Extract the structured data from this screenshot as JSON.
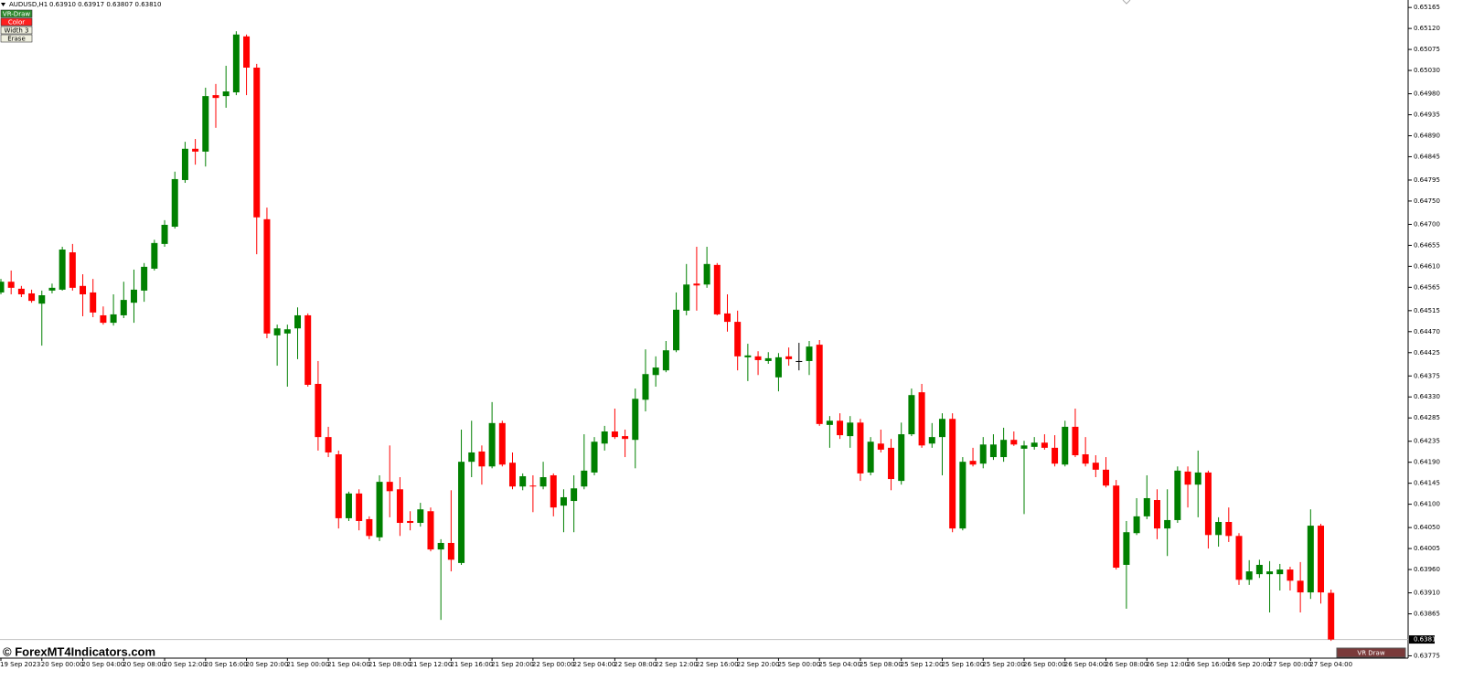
{
  "chart_data": {
    "type": "candlestick",
    "symbol": "AUDUSD,H1",
    "ohlc_text": "0.63910 0.63917 0.63807 0.63810",
    "categories": [
      "19 Sep 2023",
      null,
      null,
      null,
      "20 Sep 00:00",
      null,
      null,
      null,
      "20 Sep 04:00",
      null,
      null,
      null,
      "20 Sep 08:00",
      null,
      null,
      null,
      "20 Sep 12:00",
      null,
      null,
      null,
      "20 Sep 16:00",
      null,
      null,
      null,
      "20 Sep 20:00",
      null,
      null,
      null,
      "21 Sep 00:00",
      null,
      null,
      null,
      "21 Sep 04:00",
      null,
      null,
      null,
      "21 Sep 08:00",
      null,
      null,
      null,
      "21 Sep 12:00",
      null,
      null,
      null,
      "21 Sep 16:00",
      null,
      null,
      null,
      "21 Sep 20:00",
      null,
      null,
      null,
      "22 Sep 00:00",
      null,
      null,
      null,
      "22 Sep 04:00",
      null,
      null,
      null,
      "22 Sep 08:00",
      null,
      null,
      null,
      "22 Sep 12:00",
      null,
      null,
      null,
      "22 Sep 16:00",
      null,
      null,
      null,
      "22 Sep 20:00",
      null,
      null,
      null,
      "25 Sep 00:00",
      null,
      null,
      null,
      "25 Sep 04:00",
      null,
      null,
      null,
      "25 Sep 08:00",
      null,
      null,
      null,
      "25 Sep 12:00",
      null,
      null,
      null,
      "25 Sep 16:00",
      null,
      null,
      null,
      "25 Sep 20:00",
      null,
      null,
      null,
      "26 Sep 00:00",
      null,
      null,
      null,
      "26 Sep 04:00",
      null,
      null,
      null,
      "26 Sep 08:00",
      null,
      null,
      null,
      "26 Sep 12:00",
      null,
      null,
      null,
      "26 Sep 16:00",
      null,
      null,
      null,
      "26 Sep 20:00",
      null,
      null,
      null,
      "27 Sep 00:00",
      null,
      null,
      null,
      "27 Sep 04:00",
      null,
      null
    ],
    "open": [
      0.64554,
      0.64577,
      0.64562,
      0.64552,
      0.6453,
      0.64558,
      0.6456,
      0.6464,
      0.64568,
      0.64554,
      0.64505,
      0.64489,
      0.64505,
      0.64532,
      0.64558,
      0.64605,
      0.64658,
      0.64695,
      0.64795,
      0.64862,
      0.64856,
      0.64977,
      0.64975,
      0.64983,
      0.65103,
      0.65036,
      0.64711,
      0.64462,
      0.64466,
      0.64477,
      0.64505,
      0.64358,
      0.64244,
      0.64207,
      0.6407,
      0.64123,
      0.64068,
      0.64029,
      0.64148,
      0.64132,
      0.64064,
      0.6406,
      0.64085,
      0.64003,
      0.64017,
      0.63974,
      0.64191,
      0.64213,
      0.64181,
      0.64274,
      0.64189,
      0.64138,
      0.6414,
      0.64138,
      0.64162,
      0.64097,
      0.64107,
      0.64138,
      0.64168,
      0.6423,
      0.64256,
      0.64246,
      0.64238,
      0.64324,
      0.64377,
      0.64387,
      0.6443,
      0.64515,
      0.64573,
      0.64571,
      0.64613,
      0.64509,
      0.64491,
      0.64415,
      0.64417,
      0.64407,
      0.64372,
      0.64417,
      0.64407,
      0.64407,
      0.64442,
      0.6427,
      0.64279,
      0.64246,
      0.64275,
      0.64168,
      0.6423,
      0.64221,
      0.6415,
      0.6425,
      0.6434,
      0.6423,
      0.64244,
      0.64283,
      0.64048,
      0.64193,
      0.64187,
      0.64201,
      0.64201,
      0.64238,
      0.64219,
      0.64223,
      0.64232,
      0.64221,
      0.64185,
      0.64266,
      0.64207,
      0.64189,
      0.64174,
      0.6414,
      0.6397,
      0.64038,
      0.64074,
      0.64109,
      0.64048,
      0.64066,
      0.6417,
      0.64142,
      0.64168,
      0.64034,
      0.64062,
      0.64032,
      0.63938,
      0.6395,
      0.6395,
      0.6395,
      0.6396,
      0.63936,
      0.63911,
      0.64054,
      0.6391
    ],
    "high": [
      0.64583,
      0.64601,
      0.64568,
      0.6456,
      0.64558,
      0.64573,
      0.64652,
      0.64658,
      0.64593,
      0.64583,
      0.64524,
      0.6455,
      0.64577,
      0.64603,
      0.64617,
      0.64667,
      0.64709,
      0.64813,
      0.64877,
      0.64883,
      0.64993,
      0.65001,
      0.6504,
      0.65114,
      0.65107,
      0.65044,
      0.64736,
      0.64485,
      0.64485,
      0.64522,
      0.64509,
      0.64407,
      0.64266,
      0.64215,
      0.64127,
      0.64132,
      0.64074,
      0.64162,
      0.64226,
      0.64158,
      0.64085,
      0.64103,
      0.64093,
      0.64025,
      0.6413,
      0.6426,
      0.64279,
      0.64226,
      0.64319,
      0.64279,
      0.64211,
      0.64166,
      0.64162,
      0.64191,
      0.64166,
      0.64132,
      0.64162,
      0.6425,
      0.64244,
      0.64268,
      0.64305,
      0.6426,
      0.64348,
      0.64432,
      0.64417,
      0.6445,
      0.64554,
      0.64615,
      0.64652,
      0.64652,
      0.64617,
      0.6455,
      0.64515,
      0.64444,
      0.64428,
      0.64426,
      0.64424,
      0.64436,
      0.64446,
      0.6445,
      0.64452,
      0.64289,
      0.64295,
      0.64289,
      0.64283,
      0.64244,
      0.6426,
      0.6424,
      0.64275,
      0.64348,
      0.64358,
      0.64274,
      0.64295,
      0.64295,
      0.64201,
      0.64221,
      0.64244,
      0.6425,
      0.64264,
      0.64256,
      0.64236,
      0.64244,
      0.6425,
      0.64248,
      0.64279,
      0.64305,
      0.64244,
      0.64205,
      0.64201,
      0.64152,
      0.64064,
      0.64113,
      0.64162,
      0.64132,
      0.64132,
      0.64181,
      0.64181,
      0.64215,
      0.64172,
      0.64072,
      0.64093,
      0.64038,
      0.6398,
      0.63981,
      0.63978,
      0.63972,
      0.63966,
      0.63976,
      0.64089,
      0.64058,
      0.63917
    ],
    "low": [
      0.6455,
      0.6455,
      0.64544,
      0.64532,
      0.6444,
      0.64552,
      0.64558,
      0.64558,
      0.64503,
      0.64501,
      0.64485,
      0.64483,
      0.64499,
      0.64489,
      0.64534,
      0.64601,
      0.64652,
      0.64691,
      0.64789,
      0.64828,
      0.64824,
      0.64907,
      0.6495,
      0.64977,
      0.64977,
      0.64636,
      0.64456,
      0.64397,
      0.64352,
      0.64411,
      0.64352,
      0.64215,
      0.64201,
      0.64048,
      0.64064,
      0.64044,
      0.64025,
      0.64021,
      0.64072,
      0.64032,
      0.64044,
      0.64052,
      0.63999,
      0.63852,
      0.63956,
      0.6397,
      0.64158,
      0.64142,
      0.64177,
      0.64181,
      0.64132,
      0.6413,
      0.64083,
      0.64132,
      0.64074,
      0.6404,
      0.6404,
      0.64132,
      0.64162,
      0.64215,
      0.6424,
      0.64201,
      0.64177,
      0.64299,
      0.64352,
      0.64383,
      0.64426,
      0.64505,
      0.64515,
      0.64564,
      0.64505,
      0.6447,
      0.64387,
      0.64364,
      0.64377,
      0.64401,
      0.64342,
      0.64397,
      0.64387,
      0.64377,
      0.64268,
      0.64221,
      0.6424,
      0.64221,
      0.6415,
      0.64162,
      0.64211,
      0.6413,
      0.64142,
      0.64246,
      0.64221,
      0.64221,
      0.64162,
      0.6404,
      0.64044,
      0.64181,
      0.64177,
      0.64195,
      0.64191,
      0.64225,
      0.64079,
      0.64217,
      0.64217,
      0.64181,
      0.64181,
      0.64201,
      0.64181,
      0.64158,
      0.64136,
      0.6396,
      0.63876,
      0.64034,
      0.64068,
      0.64025,
      0.63989,
      0.6406,
      0.64093,
      0.64072,
      0.64005,
      0.64009,
      0.64019,
      0.63927,
      0.63927,
      0.63942,
      0.63868,
      0.63915,
      0.63915,
      0.63868,
      0.63897,
      0.63887,
      0.63807
    ],
    "close": [
      0.64577,
      0.64564,
      0.6455,
      0.64536,
      0.64548,
      0.64564,
      0.64646,
      0.64564,
      0.6455,
      0.64511,
      0.64489,
      0.64507,
      0.64538,
      0.6456,
      0.64609,
      0.6466,
      0.64699,
      0.64797,
      0.64862,
      0.64856,
      0.64975,
      0.64971,
      0.64985,
      0.65107,
      0.65036,
      0.64715,
      0.64466,
      0.64477,
      0.64475,
      0.64505,
      0.64356,
      0.64244,
      0.64211,
      0.6407,
      0.64123,
      0.64064,
      0.64032,
      0.64148,
      0.64128,
      0.6406,
      0.6406,
      0.64089,
      0.64003,
      0.64017,
      0.63981,
      0.64191,
      0.64211,
      0.64181,
      0.64274,
      0.64185,
      0.64138,
      0.6416,
      0.64138,
      0.64158,
      0.64093,
      0.64115,
      0.64134,
      0.64172,
      0.64234,
      0.64256,
      0.64244,
      0.6424,
      0.64326,
      0.64379,
      0.64393,
      0.6443,
      0.64517,
      0.64571,
      0.64569,
      0.64615,
      0.64507,
      0.64491,
      0.64417,
      0.64419,
      0.64409,
      0.64413,
      0.64415,
      0.64411,
      0.64407,
      0.64438,
      0.64272,
      0.64279,
      0.64248,
      0.64275,
      0.64166,
      0.64234,
      0.64217,
      0.64154,
      0.6425,
      0.64334,
      0.64226,
      0.64244,
      0.64283,
      0.64048,
      0.64191,
      0.64185,
      0.64228,
      0.64228,
      0.64238,
      0.64228,
      0.64226,
      0.64232,
      0.64221,
      0.64187,
      0.64266,
      0.64205,
      0.64187,
      0.64174,
      0.6414,
      0.63964,
      0.6404,
      0.64074,
      0.64113,
      0.64048,
      0.64066,
      0.64172,
      0.64142,
      0.64168,
      0.64034,
      0.64062,
      0.64032,
      0.63938,
      0.63956,
      0.6397,
      0.63956,
      0.6396,
      0.63936,
      0.63911,
      0.64054,
      0.63911,
      0.6381
    ],
    "up_color": "#008000",
    "down_color": "#ff0000",
    "doji_color": "#000000",
    "ylim": [
      0.6377,
      0.65181
    ],
    "yticks": [
      0.65165,
      {
        "value": 0.6512,
        "label": "0.65120"
      },
      0.65075,
      {
        "value": 0.6503,
        "label": "0.65030"
      },
      {
        "value": 0.6498,
        "label": "0.64980"
      },
      0.64935,
      {
        "value": 0.6489,
        "label": "0.64890"
      },
      0.64845,
      0.64795,
      {
        "value": 0.6475,
        "label": "0.64750"
      },
      {
        "value": 0.647,
        "label": "0.64700"
      },
      0.64655,
      {
        "value": 0.6461,
        "label": "0.64610"
      },
      0.64565,
      0.64515,
      {
        "value": 0.6447,
        "label": "0.64470"
      },
      0.64425,
      0.64375,
      {
        "value": 0.6433,
        "label": "0.64330"
      },
      0.64285,
      0.64235,
      {
        "value": 0.6419,
        "label": "0.64190"
      },
      0.64145,
      {
        "value": 0.641,
        "label": "0.64100"
      },
      {
        "value": 0.6405,
        "label": "0.64050"
      },
      0.64005,
      {
        "value": 0.6396,
        "label": "0.63960"
      },
      {
        "value": 0.6391,
        "label": "0.63910"
      },
      0.63865,
      0.63775
    ],
    "price_label": {
      "value": 0.6381,
      "label": "0.63810"
    }
  },
  "ui": {
    "buttons": [
      "VR-Draw",
      "Color",
      "Width 3",
      "Erase"
    ],
    "watermark": "© ForexMT4Indicators.com",
    "panel_button": "VR Draw"
  }
}
